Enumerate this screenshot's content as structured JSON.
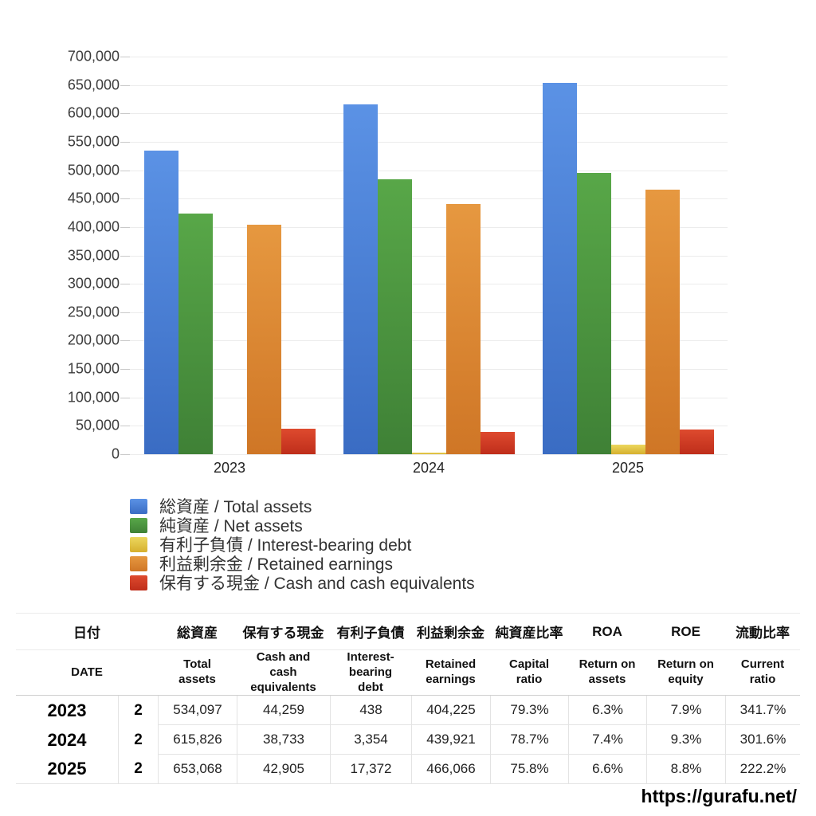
{
  "chart_data": {
    "type": "bar",
    "categories": [
      "2023",
      "2024",
      "2025"
    ],
    "series": [
      {
        "label": "総資産 / Total assets",
        "values": [
          534097,
          615826,
          653068
        ],
        "color_top": "#5b92e5",
        "color_bottom": "#3a6cc3"
      },
      {
        "label": "純資産 / Net assets",
        "values": [
          423539,
          484655,
          495026
        ],
        "color_top": "#58a748",
        "color_bottom": "#3f8136"
      },
      {
        "label": "有利子負債 / Interest-bearing debt",
        "values": [
          438,
          3354,
          17372
        ],
        "color_top": "#ecd75e",
        "color_bottom": "#d6b02e"
      },
      {
        "label": "利益剰余金 / Retained earnings",
        "values": [
          404225,
          439921,
          466066
        ],
        "color_top": "#e69840",
        "color_bottom": "#cf7626"
      },
      {
        "label": "保有する現金 /  Cash and cash equivalents",
        "values": [
          44259,
          38733,
          42905
        ],
        "color_top": "#de4a2e",
        "color_bottom": "#bf2e1b"
      }
    ],
    "ylim": [
      0,
      700000
    ],
    "ytick_step": 50000,
    "grid": true,
    "legend_position": "bottom-left"
  },
  "table": {
    "headers_jp": [
      "日付",
      "総資産",
      "保有する現金",
      "有利子負債",
      "利益剰余金",
      "純資産比率",
      "ROA",
      "ROE",
      "流動比率"
    ],
    "headers_en": [
      "DATE",
      "Total assets",
      "Cash and cash equivalents",
      "Interest-bearing debt",
      "Retained earnings",
      "Capital ratio",
      "Return on assets",
      "Return on equity",
      "Current ratio"
    ],
    "rows": [
      {
        "year": "2023",
        "month": "2",
        "values": [
          "534,097",
          "44,259",
          "438",
          "404,225",
          "79.3%",
          "6.3%",
          "7.9%",
          "341.7%"
        ]
      },
      {
        "year": "2024",
        "month": "2",
        "values": [
          "615,826",
          "38,733",
          "3,354",
          "439,921",
          "78.7%",
          "7.4%",
          "9.3%",
          "301.6%"
        ]
      },
      {
        "year": "2025",
        "month": "2",
        "values": [
          "653,068",
          "42,905",
          "17,372",
          "466,066",
          "75.8%",
          "6.6%",
          "8.8%",
          "222.2%"
        ]
      }
    ]
  },
  "footer": {
    "url": "https://gurafu.net/"
  }
}
